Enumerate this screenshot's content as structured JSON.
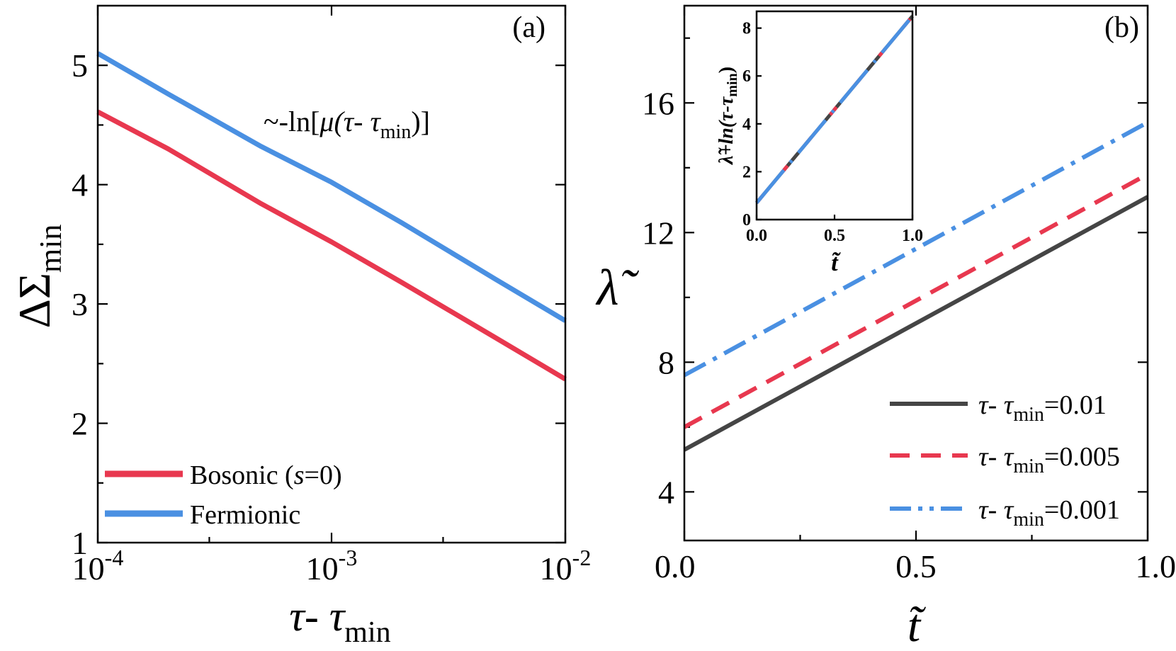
{
  "chart_data": [
    {
      "panel": "(a)",
      "type": "line",
      "xscale": "log",
      "xlim": [
        0.0001,
        0.01
      ],
      "ylim": [
        1,
        5.5
      ],
      "xticks": [
        0.0001,
        0.001,
        0.01
      ],
      "xtick_labels": [
        {
          "base": "10",
          "exp": "-4"
        },
        {
          "base": "10",
          "exp": "-3"
        },
        {
          "base": "10",
          "exp": "-2"
        }
      ],
      "yticks": [
        1,
        2,
        3,
        4,
        5
      ],
      "ytick_labels": [
        "1",
        "2",
        "3",
        "4",
        "5"
      ],
      "xlabel": {
        "main": "τ- τ",
        "sub": "min"
      },
      "ylabel": {
        "main": "ΔΣ",
        "sub": "min"
      },
      "annotation": {
        "prefix": "~-ln[",
        "mu": "μ",
        "inner": "(τ- τ",
        "sub": "min",
        "suffix": ")]"
      },
      "legend_position": "bottom-left",
      "series": [
        {
          "name_parts": {
            "pre": "Bosonic (",
            "s": "s",
            "post": "=0)"
          },
          "color": "#e8384f",
          "x": [
            0.0001,
            0.0002,
            0.0005,
            0.001,
            0.002,
            0.005,
            0.01
          ],
          "y": [
            4.61,
            4.3,
            3.84,
            3.52,
            3.18,
            2.72,
            2.37
          ]
        },
        {
          "name": "Fermionic",
          "color": "#4a90e2",
          "x": [
            0.0001,
            0.0002,
            0.0005,
            0.001,
            0.002,
            0.005,
            0.01
          ],
          "y": [
            5.1,
            4.76,
            4.32,
            4.02,
            3.68,
            3.21,
            2.86
          ]
        }
      ]
    },
    {
      "panel": "(b)",
      "type": "line",
      "xlim": [
        0,
        1
      ],
      "ylim": [
        2.5,
        19
      ],
      "xticks": [
        0,
        0.5,
        1.0
      ],
      "xtick_labels": [
        "0.0",
        "0.5",
        "1.0"
      ],
      "yticks": [
        4,
        8,
        12,
        16
      ],
      "ytick_labels": [
        "4",
        "8",
        "12",
        "16"
      ],
      "xlabel": "t̃",
      "ylabel": "λ̃",
      "legend_position": "bottom-right",
      "series": [
        {
          "label": {
            "main": "τ- τ",
            "sub": "min",
            "value": "=0.01"
          },
          "color": "#454545",
          "style": "solid",
          "x": [
            0,
            1
          ],
          "y": [
            5.3,
            13.1
          ]
        },
        {
          "label": {
            "main": "τ- τ",
            "sub": "min",
            "value": "=0.005"
          },
          "color": "#e8384f",
          "style": "dash",
          "x": [
            0,
            1
          ],
          "y": [
            6.0,
            13.8
          ]
        },
        {
          "label": {
            "main": "τ- τ",
            "sub": "min",
            "value": "=0.001"
          },
          "color": "#4a90e2",
          "style": "dashdot",
          "x": [
            0,
            1
          ],
          "y": [
            7.6,
            15.4
          ]
        }
      ]
    },
    {
      "panel": "(b) inset",
      "type": "line",
      "xlim": [
        0,
        1
      ],
      "ylim": [
        0,
        8.7
      ],
      "xticks": [
        0,
        0.5,
        1.0
      ],
      "xtick_labels": [
        "0.0",
        "0.5",
        "1.0"
      ],
      "yticks": [
        0,
        2,
        4,
        6,
        8
      ],
      "ytick_labels": [
        "0",
        "2",
        "4",
        "6",
        "8"
      ],
      "xlabel": "t̃",
      "ylabel": {
        "main": "λ̃+ln(τ-τ",
        "sub": "min",
        "suffix": ")"
      },
      "series": [
        {
          "color": "#454545",
          "style": "solid",
          "x": [
            0,
            1
          ],
          "y": [
            0.7,
            8.5
          ]
        },
        {
          "color": "#e8384f",
          "style": "dash",
          "x": [
            0,
            1
          ],
          "y": [
            0.7,
            8.5
          ]
        },
        {
          "color": "#4a90e2",
          "style": "dashdot",
          "x": [
            0,
            1
          ],
          "y": [
            0.7,
            8.5
          ]
        }
      ]
    }
  ]
}
